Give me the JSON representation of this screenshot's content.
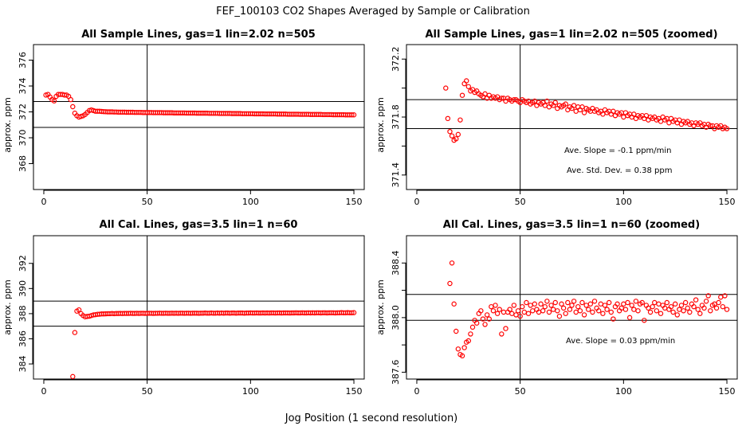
{
  "figure": {
    "title": "FEF_100103  CO2 Shapes Averaged by Sample or Calibration",
    "xlabel": "Jog Position (1 second resolution)"
  },
  "colors": {
    "points": "#ff0000",
    "axes": "#000000",
    "background": "#ffffff"
  },
  "chart_data": [
    {
      "type": "scatter",
      "title": "All Sample Lines, gas=1 lin=2.02 n=505",
      "xlabel": "",
      "ylabel": "approx. ppm",
      "xlim": [
        -5,
        155
      ],
      "ylim": [
        366,
        377.2
      ],
      "xticks": [
        0,
        50,
        100,
        150
      ],
      "yticks": [
        368,
        370,
        372,
        374,
        376
      ],
      "ytick_labels": [
        "368",
        "370",
        "372",
        "374",
        "376"
      ],
      "vline": 50,
      "hlines": [
        370.8,
        372.8
      ],
      "annotations": [],
      "series": [
        {
          "x_start": 1,
          "x_end": 150,
          "values": [
            373.3,
            373.35,
            373.15,
            372.95,
            372.85,
            373.2,
            373.35,
            373.35,
            373.35,
            373.3,
            373.3,
            373.2,
            372.95,
            372.4,
            371.9,
            371.7,
            371.6,
            371.65,
            371.7,
            371.8,
            371.95,
            372.1,
            372.15,
            372.1,
            372.05,
            372.05,
            372.05,
            372.03,
            372.02,
            372.01,
            372.0,
            372.0,
            372.0,
            371.99,
            371.99,
            371.98,
            371.98,
            371.98,
            371.98,
            371.97,
            371.97,
            371.97,
            371.97,
            371.96,
            371.96,
            371.96,
            371.96,
            371.95,
            371.95,
            371.95,
            371.95,
            371.95,
            371.94,
            371.94,
            371.94,
            371.94,
            371.94,
            371.93,
            371.93,
            371.93,
            371.93,
            371.93,
            371.92,
            371.92,
            371.92,
            371.92,
            371.92,
            371.92,
            371.91,
            371.91,
            371.91,
            371.91,
            371.91,
            371.9,
            371.9,
            371.9,
            371.9,
            371.9,
            371.9,
            371.89,
            371.89,
            371.89,
            371.89,
            371.89,
            371.88,
            371.88,
            371.88,
            371.88,
            371.88,
            371.88,
            371.87,
            371.87,
            371.87,
            371.87,
            371.87,
            371.86,
            371.86,
            371.86,
            371.86,
            371.86,
            371.86,
            371.85,
            371.85,
            371.85,
            371.85,
            371.85,
            371.84,
            371.84,
            371.84,
            371.84,
            371.84,
            371.84,
            371.83,
            371.83,
            371.83,
            371.83,
            371.83,
            371.82,
            371.82,
            371.82,
            371.82,
            371.82,
            371.82,
            371.81,
            371.81,
            371.81,
            371.81,
            371.81,
            371.8,
            371.8,
            371.8,
            371.8,
            371.8,
            371.8,
            371.79,
            371.79,
            371.79,
            371.79,
            371.79,
            371.78,
            371.78,
            371.78,
            371.78,
            371.78,
            371.78,
            371.77,
            371.77,
            371.77,
            371.77,
            371.77
          ]
        }
      ]
    },
    {
      "type": "scatter",
      "title": "All Sample Lines, gas=1 lin=2.02 n=505 (zoomed)",
      "xlabel": "",
      "ylabel": "approx. ppm",
      "xlim": [
        -5,
        155
      ],
      "ylim": [
        371.3,
        372.3
      ],
      "xticks": [
        0,
        50,
        100,
        150
      ],
      "yticks": [
        371.4,
        371.6,
        371.8,
        372.0,
        372.2
      ],
      "ytick_labels": [
        "371.4",
        "",
        "371.8",
        "",
        "372.2"
      ],
      "vline": 50,
      "hlines": [
        371.92,
        371.72
      ],
      "annotations": [
        "Ave. Slope =  -0.1  ppm/min",
        "Ave. Std. Dev. =  0.38  ppm"
      ],
      "series": [
        {
          "x_start": 14,
          "x_end": 150,
          "values": [
            372.0,
            371.79,
            371.7,
            371.67,
            371.64,
            371.65,
            371.68,
            371.78,
            371.95,
            372.03,
            372.05,
            372.01,
            371.98,
            371.99,
            371.97,
            371.98,
            371.96,
            371.95,
            371.94,
            371.96,
            371.93,
            371.95,
            371.93,
            371.94,
            371.93,
            371.94,
            371.92,
            371.93,
            371.93,
            371.91,
            371.93,
            371.92,
            371.91,
            371.92,
            371.92,
            371.91,
            371.9,
            371.92,
            371.91,
            371.9,
            371.91,
            371.89,
            371.9,
            371.91,
            371.88,
            371.9,
            371.89,
            371.9,
            371.88,
            371.91,
            371.87,
            371.89,
            371.88,
            371.9,
            371.86,
            371.88,
            371.87,
            371.88,
            371.89,
            371.85,
            371.87,
            371.86,
            371.88,
            371.84,
            371.87,
            371.85,
            371.87,
            371.83,
            371.86,
            371.85,
            371.84,
            371.86,
            371.84,
            371.85,
            371.83,
            371.84,
            371.82,
            371.85,
            371.83,
            371.84,
            371.82,
            371.84,
            371.81,
            371.83,
            371.82,
            371.83,
            371.8,
            371.83,
            371.81,
            371.82,
            371.8,
            371.82,
            371.79,
            371.81,
            371.8,
            371.81,
            371.79,
            371.81,
            371.78,
            371.8,
            371.79,
            371.8,
            371.78,
            371.79,
            371.77,
            371.8,
            371.78,
            371.79,
            371.76,
            371.79,
            371.77,
            371.78,
            371.76,
            371.78,
            371.75,
            371.77,
            371.76,
            371.77,
            371.75,
            371.76,
            371.74,
            371.76,
            371.75,
            371.76,
            371.74,
            371.75,
            371.73,
            371.75,
            371.74,
            371.74,
            371.72,
            371.74,
            371.73,
            371.74,
            371.72,
            371.73,
            371.72
          ]
        }
      ]
    },
    {
      "type": "scatter",
      "title": "All Cal. Lines, gas=3.5 lin=1 n=60",
      "xlabel": "",
      "ylabel": "approx. ppm",
      "xlim": [
        -5,
        155
      ],
      "ylim": [
        382.8,
        394.2
      ],
      "xticks": [
        0,
        50,
        100,
        150
      ],
      "yticks": [
        384,
        386,
        388,
        390,
        392
      ],
      "ytick_labels": [
        "384",
        "386",
        "388",
        "390",
        "392"
      ],
      "vline": 50,
      "hlines": [
        389.0,
        387.0
      ],
      "annotations": [],
      "series": [
        {
          "x_start": 14,
          "x_end": 150,
          "values": [
            383.0,
            386.5,
            388.2,
            388.3,
            388.0,
            387.85,
            387.75,
            387.78,
            387.8,
            387.85,
            387.9,
            387.92,
            387.95,
            387.96,
            387.98,
            387.98,
            387.99,
            388.0,
            388.0,
            388.01,
            388.0,
            388.01,
            388.01,
            388.02,
            388.01,
            388.02,
            388.02,
            388.02,
            388.03,
            388.02,
            388.02,
            388.03,
            388.02,
            388.03,
            388.03,
            388.02,
            388.03,
            388.03,
            388.03,
            388.02,
            388.03,
            388.03,
            388.04,
            388.03,
            388.03,
            388.04,
            388.03,
            388.03,
            388.04,
            388.03,
            388.04,
            388.03,
            388.04,
            388.04,
            388.03,
            388.04,
            388.04,
            388.03,
            388.04,
            388.04,
            388.04,
            388.03,
            388.04,
            388.04,
            388.05,
            388.04,
            388.04,
            388.05,
            388.04,
            388.04,
            388.05,
            388.04,
            388.05,
            388.04,
            388.05,
            388.05,
            388.04,
            388.05,
            388.05,
            388.04,
            388.05,
            388.05,
            388.05,
            388.04,
            388.05,
            388.05,
            388.06,
            388.05,
            388.05,
            388.06,
            388.05,
            388.05,
            388.06,
            388.05,
            388.06,
            388.05,
            388.06,
            388.06,
            388.05,
            388.06,
            388.06,
            388.05,
            388.06,
            388.06,
            388.06,
            388.05,
            388.06,
            388.06,
            388.07,
            388.06,
            388.06,
            388.07,
            388.06,
            388.06,
            388.07,
            388.06,
            388.07,
            388.06,
            388.07,
            388.07,
            388.06,
            388.07,
            388.07,
            388.06,
            388.07,
            388.07,
            388.07,
            388.06,
            388.07,
            388.07,
            388.08,
            388.07,
            388.07,
            388.08,
            388.07,
            388.07,
            388.08
          ]
        }
      ]
    },
    {
      "type": "scatter",
      "title": "All Cal. Lines, gas=3.5 lin=1 n=60 (zoomed)",
      "xlabel": "",
      "ylabel": "approx. ppm",
      "xlim": [
        -5,
        155
      ],
      "ylim": [
        387.55,
        388.6
      ],
      "xticks": [
        0,
        50,
        100,
        150
      ],
      "yticks": [
        387.6,
        387.8,
        388.0,
        388.2,
        388.4
      ],
      "ytick_labels": [
        "387.6",
        "",
        "388.0",
        "",
        "388.4"
      ],
      "vline": 50,
      "hlines": [
        388.17,
        387.98
      ],
      "annotations": [
        "Ave. Slope =  0.03  ppm/min"
      ],
      "series": [
        {
          "x_start": 16,
          "x_end": 150,
          "values": [
            388.25,
            388.4,
            388.1,
            387.9,
            387.77,
            387.73,
            387.72,
            387.78,
            387.82,
            387.83,
            387.88,
            387.93,
            387.98,
            387.96,
            388.03,
            388.05,
            387.99,
            387.95,
            388.02,
            387.99,
            388.08,
            388.05,
            388.09,
            388.03,
            388.06,
            387.88,
            388.04,
            387.92,
            388.04,
            388.06,
            388.03,
            388.09,
            388.02,
            388.05,
            388.01,
            388.08,
            388.04,
            388.11,
            388.03,
            388.09,
            388.05,
            388.1,
            388.06,
            388.04,
            388.1,
            388.05,
            388.08,
            388.12,
            388.04,
            388.09,
            388.06,
            388.11,
            388.05,
            388.01,
            388.1,
            388.07,
            388.03,
            388.11,
            388.06,
            388.09,
            388.12,
            388.04,
            388.08,
            388.05,
            388.11,
            388.02,
            388.09,
            388.06,
            388.1,
            388.04,
            388.12,
            388.07,
            388.05,
            388.1,
            388.03,
            388.09,
            388.06,
            388.11,
            388.04,
            387.99,
            388.08,
            388.1,
            388.05,
            388.07,
            388.1,
            388.06,
            388.11,
            388.0,
            388.09,
            388.06,
            388.12,
            388.05,
            388.1,
            388.11,
            387.98,
            388.09,
            388.07,
            388.04,
            388.08,
            388.11,
            388.05,
            388.1,
            388.03,
            388.09,
            388.07,
            388.11,
            388.06,
            388.08,
            388.04,
            388.1,
            388.02,
            388.06,
            388.09,
            388.05,
            388.11,
            388.07,
            388.04,
            388.1,
            388.08,
            388.13,
            388.06,
            388.03,
            388.09,
            388.07,
            388.12,
            388.16,
            388.05,
            388.09,
            388.1,
            388.07,
            388.11,
            388.15,
            388.08,
            388.16,
            388.06
          ]
        }
      ]
    }
  ]
}
